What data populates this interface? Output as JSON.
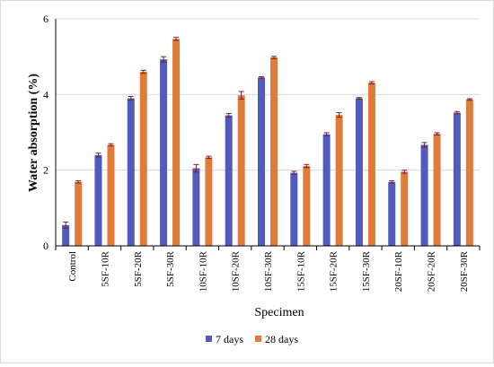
{
  "chart_data": {
    "type": "bar",
    "xlabel": "Specimen",
    "ylabel": "Water absorption (%)",
    "ylim": [
      0,
      6
    ],
    "yticks": [
      0,
      2,
      4,
      6
    ],
    "grid": true,
    "legend_position": "bottom",
    "categories": [
      "Control",
      "5SF-10R",
      "5SF-20R",
      "5SF-30R",
      "10SF-10R",
      "10SF-20R",
      "10SF-30R",
      "15SF-10R",
      "15SF-20R",
      "15SF-30R",
      "20SF-10R",
      "20SF-20R",
      "20SF-30R"
    ],
    "series": [
      {
        "name": "7 days",
        "color": "#4f5bbd",
        "values": [
          0.55,
          2.4,
          3.9,
          4.93,
          2.05,
          3.45,
          4.45,
          1.93,
          2.95,
          3.9,
          1.69,
          2.67,
          3.52
        ],
        "errors": [
          0.08,
          0.05,
          0.05,
          0.07,
          0.1,
          0.05,
          0.02,
          0.04,
          0.04,
          0.02,
          0.03,
          0.06,
          0.03
        ]
      },
      {
        "name": "28 days",
        "color": "#e07b39",
        "values": [
          1.69,
          2.67,
          4.6,
          5.47,
          2.34,
          3.98,
          4.98,
          2.11,
          3.46,
          4.31,
          1.96,
          2.96,
          3.87
        ],
        "errors": [
          0.03,
          0.03,
          0.04,
          0.04,
          0.03,
          0.1,
          0.03,
          0.04,
          0.06,
          0.03,
          0.04,
          0.03,
          0.02
        ]
      }
    ]
  }
}
